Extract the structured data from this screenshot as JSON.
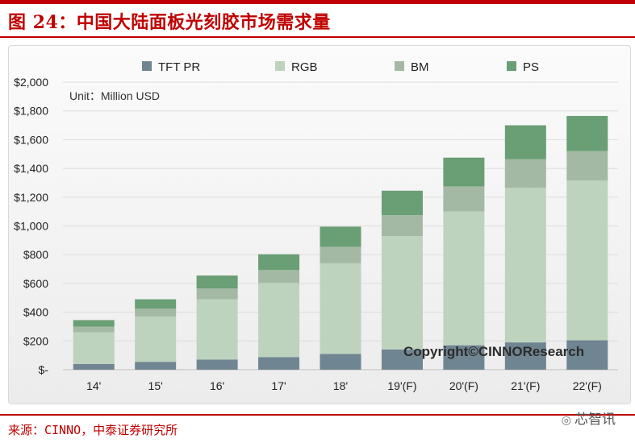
{
  "figure": {
    "title": "图 24：中国大陆面板光刻胶市场需求量",
    "source": "来源：CINNO，中泰证券研究所",
    "watermark": "芯智讯",
    "copyright": "Copyright©CINNOResearch"
  },
  "chart_data": {
    "type": "bar",
    "stacked": true,
    "unit_note": "Unit：Million USD",
    "categories": [
      "14'",
      "15'",
      "16'",
      "17'",
      "18'",
      "19'(F)",
      "20'(F)",
      "21'(F)",
      "22'(F)"
    ],
    "series": [
      {
        "name": "TFT PR",
        "color": "#6f8592",
        "values": [
          40,
          55,
          70,
          88,
          110,
          140,
          170,
          190,
          205
        ]
      },
      {
        "name": "RGB",
        "color": "#bdd3be",
        "values": [
          220,
          315,
          420,
          515,
          630,
          790,
          930,
          1075,
          1110
        ]
      },
      {
        "name": "BM",
        "color": "#a4b9a4",
        "values": [
          40,
          55,
          75,
          90,
          115,
          145,
          175,
          200,
          205
        ]
      },
      {
        "name": "PS",
        "color": "#6a9e74",
        "values": [
          45,
          65,
          90,
          110,
          140,
          170,
          200,
          235,
          245
        ]
      }
    ],
    "yticks": [
      "$-",
      "$200",
      "$400",
      "$600",
      "$800",
      "$1,000",
      "$1,200",
      "$1,400",
      "$1,600",
      "$1,800",
      "$2,000"
    ],
    "ylim": [
      0,
      2000
    ],
    "legend_position": "top",
    "grid": true
  }
}
